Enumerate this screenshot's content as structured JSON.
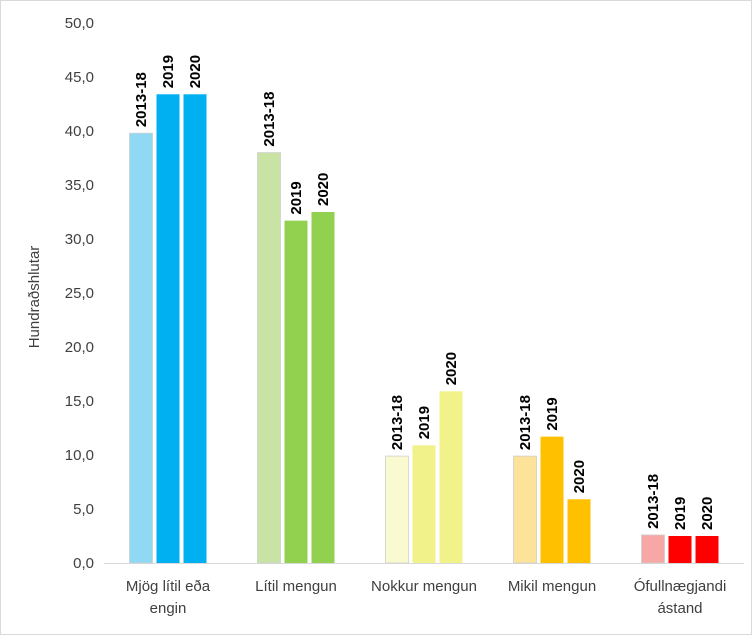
{
  "chart_data": {
    "type": "bar",
    "title": "",
    "xlabel": "",
    "ylabel": "Hundraðshlutar",
    "ylim": [
      0,
      50
    ],
    "ytick_step": 5,
    "ytick_labels": [
      "0,0",
      "5,0",
      "10,0",
      "15,0",
      "20,0",
      "25,0",
      "30,0",
      "35,0",
      "40,0",
      "45,0",
      "50,0"
    ],
    "grid": false,
    "legend": "none",
    "series_names": [
      "2013-18",
      "2019",
      "2020"
    ],
    "categories": [
      {
        "label_lines": [
          "Mjög lítil eða",
          "engin"
        ],
        "values": [
          39.8,
          43.4,
          43.4
        ],
        "colors": [
          "#8fd9f5",
          "#00b0f0",
          "#00b0f0"
        ]
      },
      {
        "label_lines": [
          "Lítil mengun"
        ],
        "values": [
          38.0,
          31.7,
          32.5
        ],
        "colors": [
          "#c9e3a4",
          "#92d050",
          "#92d050"
        ]
      },
      {
        "label_lines": [
          "Nokkur mengun"
        ],
        "values": [
          9.9,
          10.9,
          15.9
        ],
        "colors": [
          "#fafad0",
          "#f2f28a",
          "#f2f28a"
        ]
      },
      {
        "label_lines": [
          "Mikil mengun"
        ],
        "values": [
          9.9,
          11.7,
          5.9
        ],
        "colors": [
          "#fde29a",
          "#ffc000",
          "#ffc000"
        ]
      },
      {
        "label_lines": [
          "Ófullnægjandi",
          "ástand"
        ],
        "values": [
          2.6,
          2.5,
          2.5
        ],
        "colors": [
          "#f8a7a7",
          "#ff0000",
          "#ff0000"
        ]
      }
    ]
  }
}
